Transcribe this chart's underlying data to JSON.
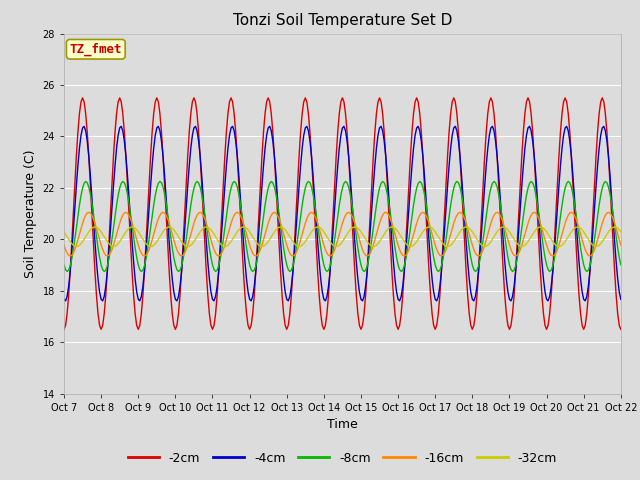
{
  "title": "Tonzi Soil Temperature Set D",
  "xlabel": "Time",
  "ylabel": "Soil Temperature (C)",
  "ylim": [
    14,
    28
  ],
  "background_color": "#dcdcdc",
  "plot_bg_color": "#dcdcdc",
  "annotation_text": "TZ_fmet",
  "annotation_bg": "#ffffcc",
  "annotation_border": "#999900",
  "annotation_text_color": "#cc0000",
  "xtick_labels": [
    "Oct 7",
    "Oct 8",
    "Oct 9",
    "Oct 10",
    "Oct 11",
    "Oct 12",
    "Oct 13",
    "Oct 14",
    "Oct 15",
    "Oct 16",
    "Oct 17",
    "Oct 18",
    "Oct 19",
    "Oct 20",
    "Oct 21",
    "Oct 22"
  ],
  "colors": [
    "#dd0000",
    "#0000cc",
    "#00bb00",
    "#ff8800",
    "#cccc00"
  ],
  "labels": [
    "-2cm",
    "-4cm",
    "-8cm",
    "-16cm",
    "-32cm"
  ],
  "legend_fontsize": 9,
  "title_fontsize": 11,
  "tick_fontsize": 7,
  "axis_label_fontsize": 9
}
